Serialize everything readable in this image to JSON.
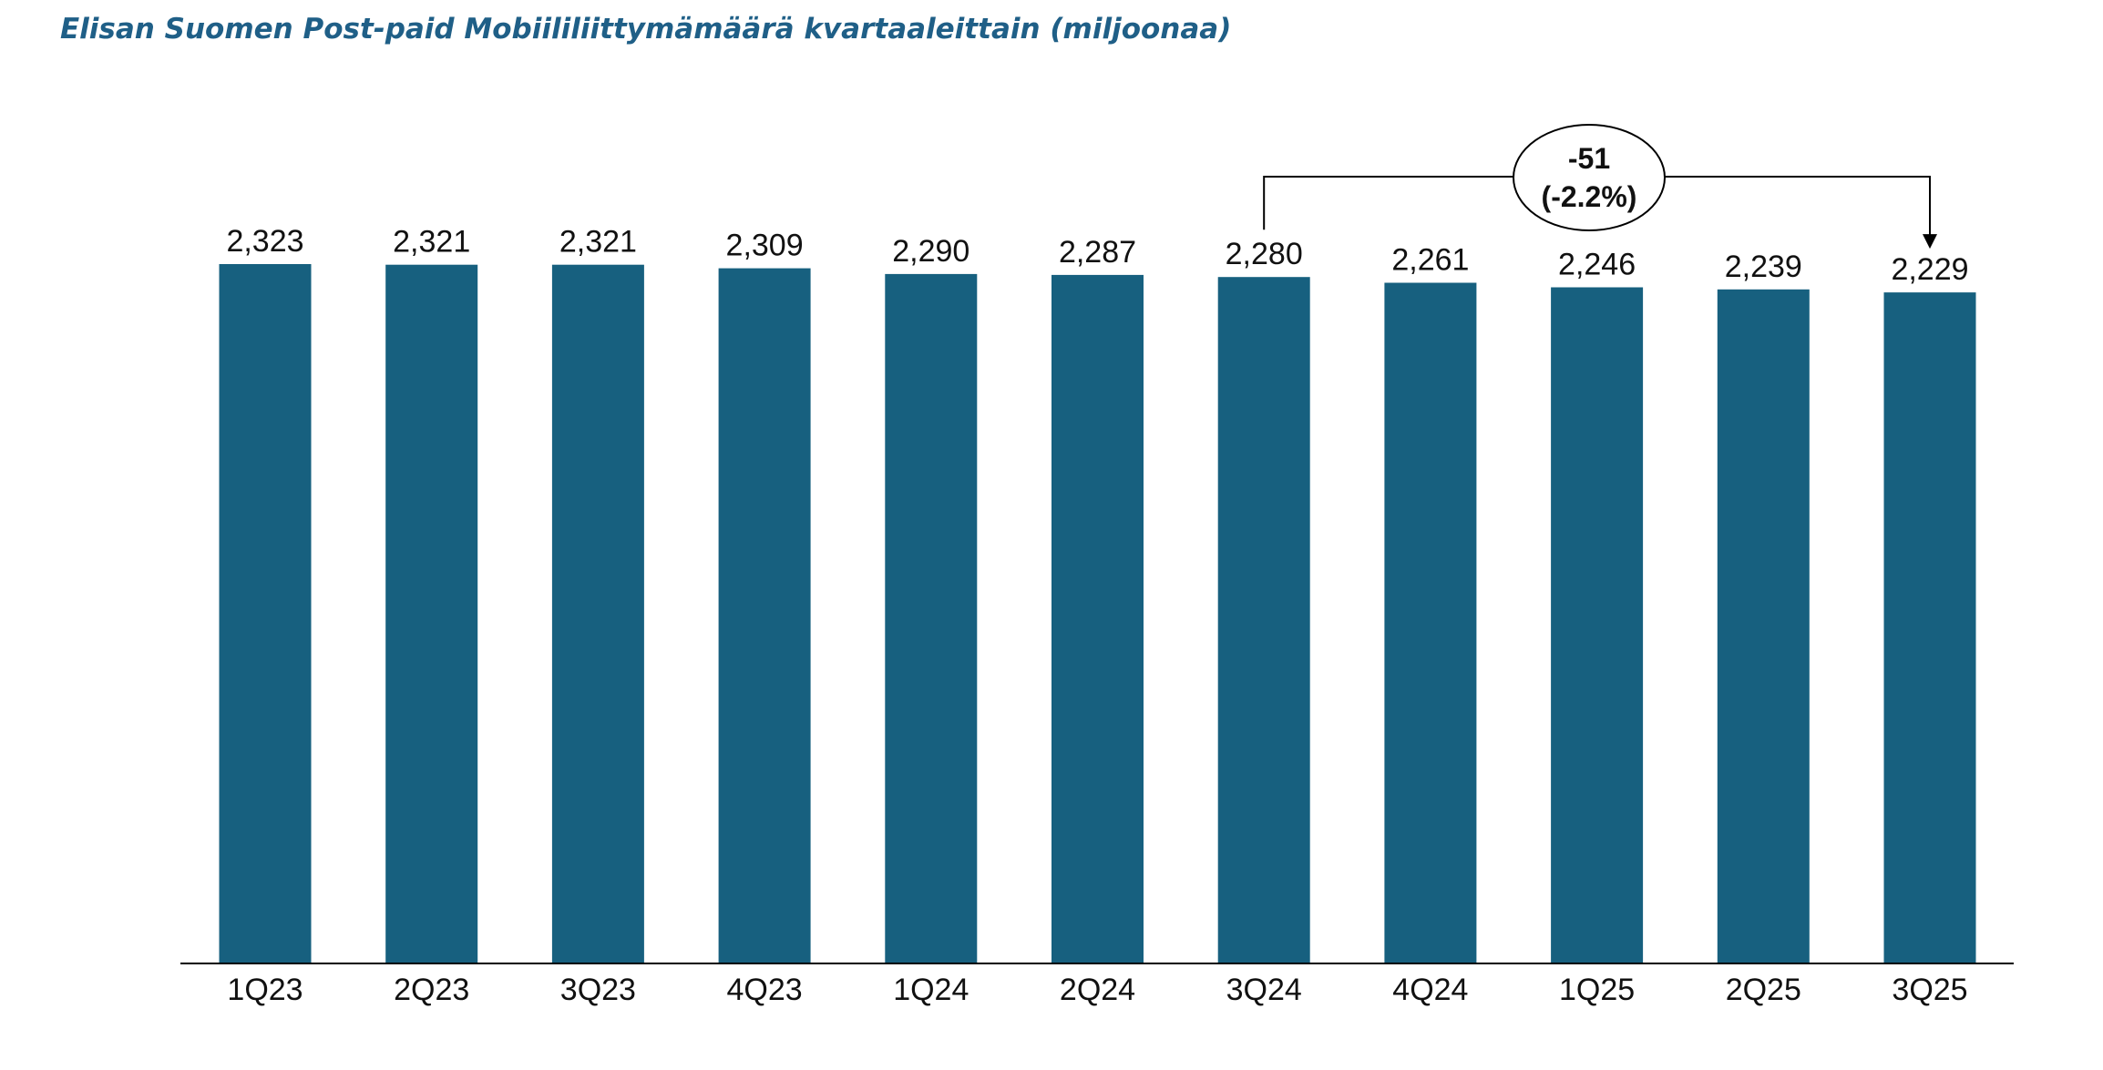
{
  "chart_data": {
    "type": "bar",
    "title": "Elisan Suomen Post-paid Mobiililiittymämäärä kvartaaleittain (miljoonaa)",
    "categories": [
      "1Q23",
      "2Q23",
      "3Q23",
      "4Q23",
      "1Q24",
      "2Q24",
      "3Q24",
      "4Q24",
      "1Q25",
      "2Q25",
      "3Q25"
    ],
    "values": [
      2.323,
      2.321,
      2.321,
      2.309,
      2.29,
      2.287,
      2.28,
      2.261,
      2.246,
      2.239,
      2.229
    ],
    "value_labels": [
      "2,323",
      "2,321",
      "2,321",
      "2,309",
      "2,290",
      "2,287",
      "2,280",
      "2,261",
      "2,246",
      "2,239",
      "2,229"
    ],
    "ylim": [
      0,
      2.323
    ],
    "bar_color": "#17607f",
    "axis_color": "#000000",
    "grid": false,
    "annotation": {
      "from_category": "3Q24",
      "to_category": "3Q25",
      "line1": "-51",
      "line2": "(-2.2%)"
    }
  }
}
